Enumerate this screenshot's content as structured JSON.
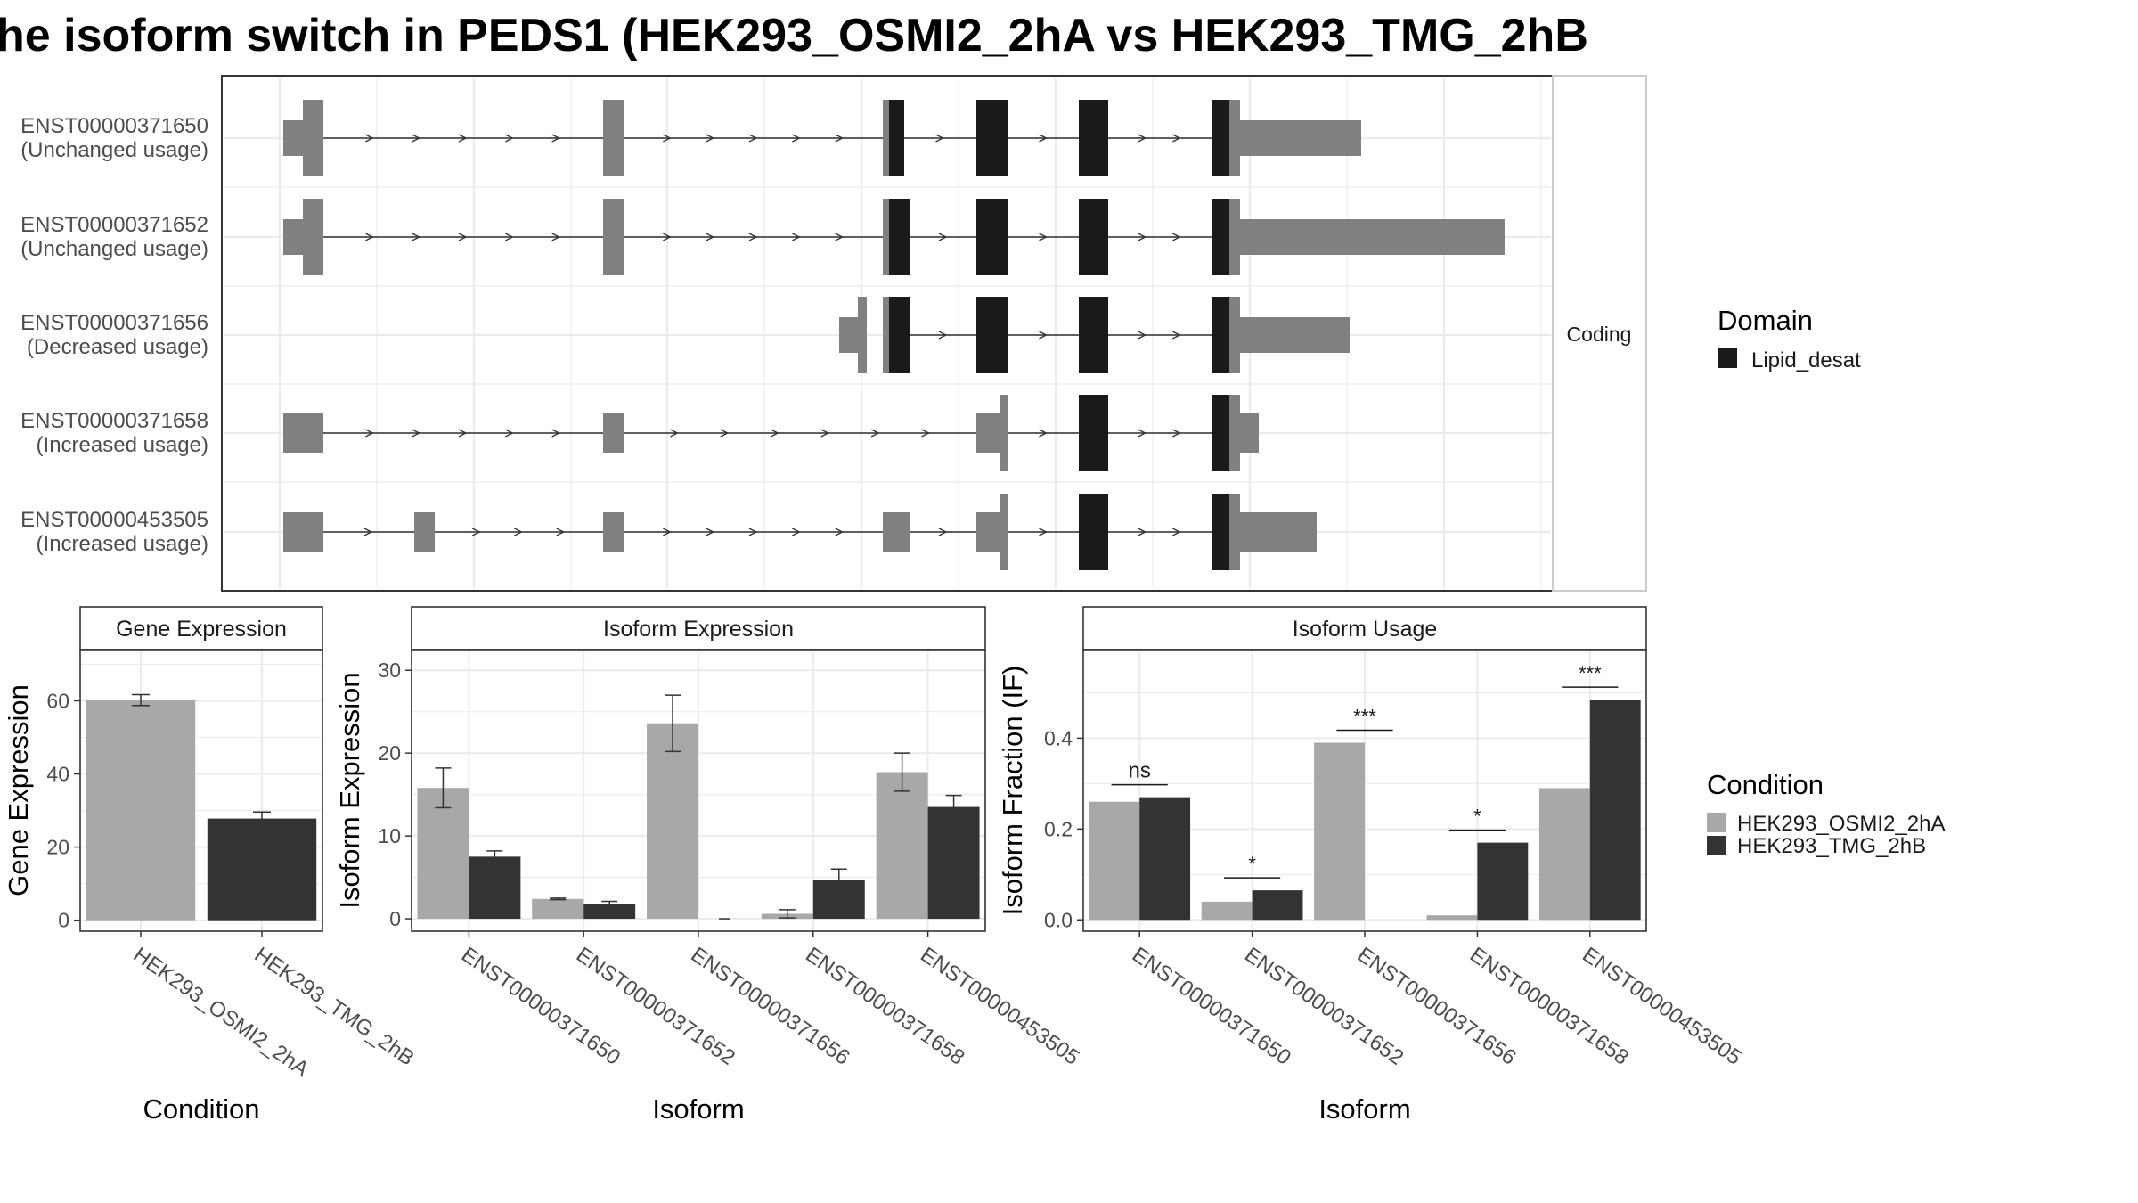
{
  "title": "he isoform switch in PEDS1 (HEK293_OSMI2_2hA vs HEK293_TMG_2hB",
  "colors": {
    "cond1": "#a8a8a8",
    "cond2": "#333333",
    "utr": "#808080",
    "domain": "#1a1a1a",
    "grid": "#ebebeb",
    "frame": "#333333"
  },
  "structure": {
    "facet_label": "Coding",
    "legend_title": "Domain",
    "legend_items": [
      "Lipid_desat"
    ],
    "isoforms": [
      {
        "id": "ENST00000371650",
        "usage": "(Unchanged usage)"
      },
      {
        "id": "ENST00000371652",
        "usage": "(Unchanged usage)"
      },
      {
        "id": "ENST00000371656",
        "usage": "(Decreased usage)"
      },
      {
        "id": "ENST00000371658",
        "usage": "(Increased usage)"
      },
      {
        "id": "ENST00000453505",
        "usage": "(Increased usage)"
      }
    ]
  },
  "condition_legend": {
    "title": "Condition",
    "items": [
      "HEK293_OSMI2_2hA",
      "HEK293_TMG_2hB"
    ]
  },
  "chart_data": [
    {
      "type": "bar",
      "title": "Gene Expression",
      "xlabel": "Condition",
      "ylabel": "Gene Expression",
      "categories": [
        "HEK293_OSMI2_2hA",
        "HEK293_TMG_2hB"
      ],
      "values": [
        60.2,
        27.8
      ],
      "errors": [
        1.5,
        1.8
      ],
      "ylim": [
        -3,
        74
      ],
      "yticks": [
        0,
        20,
        40,
        60
      ]
    },
    {
      "type": "bar",
      "title": "Isoform Expression",
      "xlabel": "Isoform",
      "ylabel": "Isoform Expression",
      "categories": [
        "ENST00000371650",
        "ENST00000371652",
        "ENST00000371656",
        "ENST00000371658",
        "ENST00000453505"
      ],
      "series": [
        {
          "name": "HEK293_OSMI2_2hA",
          "values": [
            15.8,
            2.4,
            23.6,
            0.6,
            17.7
          ],
          "errors": [
            2.4,
            0.1,
            3.4,
            0.5,
            2.3
          ]
        },
        {
          "name": "HEK293_TMG_2hB",
          "values": [
            7.5,
            1.8,
            0.0,
            4.7,
            13.5
          ],
          "errors": [
            0.7,
            0.3,
            0.0,
            1.3,
            1.4
          ]
        }
      ],
      "ylim": [
        -1.5,
        32.5
      ],
      "yticks": [
        0,
        10,
        20,
        30
      ]
    },
    {
      "type": "bar",
      "title": "Isoform Usage",
      "xlabel": "Isoform",
      "ylabel": "Isoform Fraction (IF)",
      "categories": [
        "ENST00000371650",
        "ENST00000371652",
        "ENST00000371656",
        "ENST00000371658",
        "ENST00000453505"
      ],
      "series": [
        {
          "name": "HEK293_OSMI2_2hA",
          "values": [
            0.26,
            0.04,
            0.39,
            0.01,
            0.29
          ]
        },
        {
          "name": "HEK293_TMG_2hB",
          "values": [
            0.27,
            0.065,
            0.0,
            0.17,
            0.485
          ]
        }
      ],
      "significance": [
        "ns",
        "*",
        "***",
        "*",
        "***"
      ],
      "ylim": [
        -0.025,
        0.595
      ],
      "yticks": [
        0.0,
        0.2,
        0.4
      ]
    }
  ]
}
